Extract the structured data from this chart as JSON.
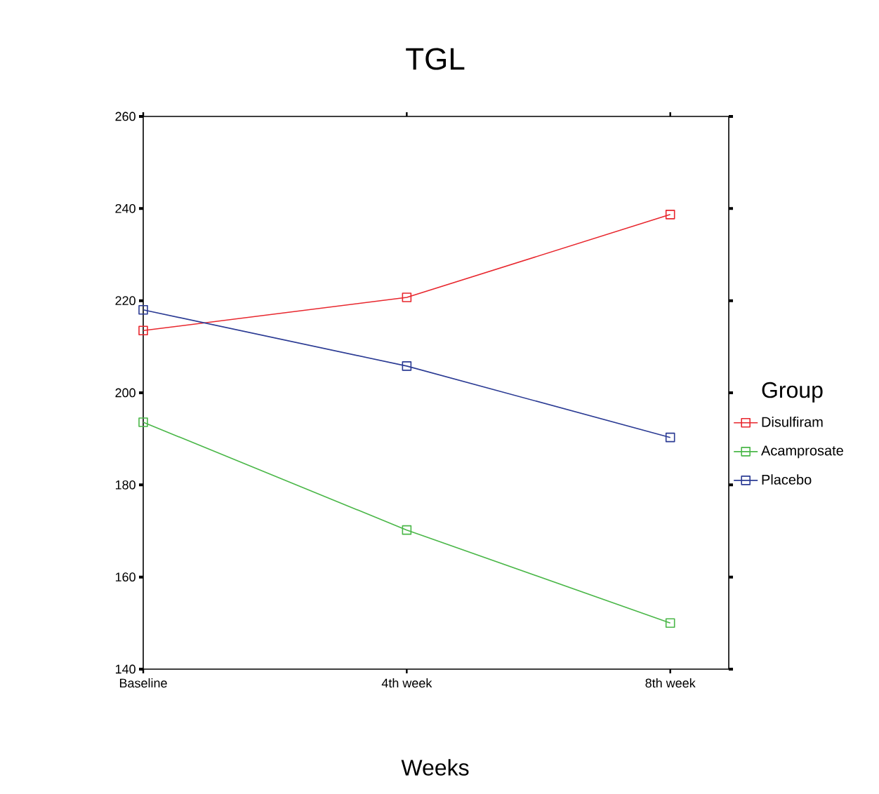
{
  "chart_data": {
    "type": "line",
    "title": "TGL",
    "xlabel": "Weeks",
    "legend_title": "Group",
    "categories": [
      "Baseline",
      "4th week",
      "8th week"
    ],
    "series": [
      {
        "name": "Disulfiram",
        "color": "#e8262d",
        "values": [
          213.5,
          220.7,
          238.7
        ]
      },
      {
        "name": "Acamprosate",
        "color": "#4ab748",
        "values": [
          193.6,
          170.2,
          150
        ]
      },
      {
        "name": "Placebo",
        "color": "#2b3b94",
        "values": [
          218,
          205.8,
          190.3
        ]
      }
    ],
    "ylim": [
      140,
      260
    ],
    "yticks": [
      140,
      160,
      180,
      200,
      220,
      240,
      260
    ],
    "marker": "square",
    "legend": "right",
    "grid": false
  }
}
